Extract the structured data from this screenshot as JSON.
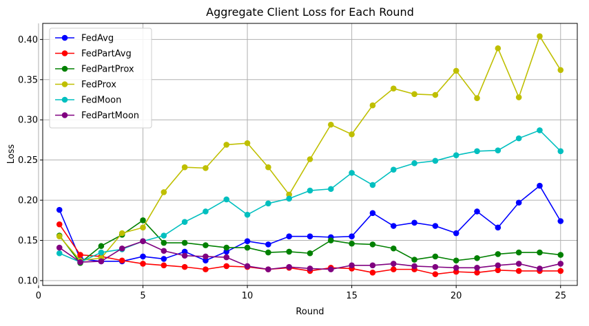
{
  "chart_data": {
    "type": "line",
    "title": "Aggregate Client Loss for Each Round",
    "xlabel": "Round",
    "ylabel": "Loss",
    "xlim": [
      0.2,
      25.8
    ],
    "ylim": [
      0.094,
      0.42
    ],
    "xticks": [
      0,
      5,
      10,
      15,
      20,
      25
    ],
    "yticks": [
      0.1,
      0.15,
      0.2,
      0.25,
      0.3,
      0.35,
      0.4
    ],
    "xtick_labels": [
      "0",
      "5",
      "10",
      "15",
      "20",
      "25"
    ],
    "ytick_labels": [
      "0.10",
      "0.15",
      "0.20",
      "0.25",
      "0.30",
      "0.35",
      "0.40"
    ],
    "grid": true,
    "legend_position": "top-left",
    "x": [
      1,
      2,
      3,
      4,
      5,
      6,
      7,
      8,
      9,
      10,
      11,
      12,
      13,
      14,
      15,
      16,
      17,
      18,
      19,
      20,
      21,
      22,
      23,
      24,
      25
    ],
    "series": [
      {
        "name": "FedAvg",
        "color": "#0000ff",
        "values": [
          0.188,
          0.127,
          0.124,
          0.124,
          0.13,
          0.127,
          0.136,
          0.125,
          0.136,
          0.149,
          0.145,
          0.155,
          0.155,
          0.154,
          0.155,
          0.184,
          0.168,
          0.172,
          0.168,
          0.159,
          0.186,
          0.166,
          0.197,
          0.218,
          0.174
        ]
      },
      {
        "name": "FedPartAvg",
        "color": "#ff0000",
        "values": [
          0.17,
          0.132,
          0.13,
          0.125,
          0.121,
          0.119,
          0.117,
          0.114,
          0.118,
          0.117,
          0.114,
          0.116,
          0.112,
          0.116,
          0.115,
          0.11,
          0.114,
          0.114,
          0.108,
          0.111,
          0.11,
          0.113,
          0.112,
          0.112,
          0.112
        ]
      },
      {
        "name": "FedPartProx",
        "color": "#008000",
        "values": [
          0.156,
          0.122,
          0.143,
          0.157,
          0.175,
          0.147,
          0.147,
          0.144,
          0.141,
          0.141,
          0.135,
          0.136,
          0.134,
          0.15,
          0.146,
          0.145,
          0.14,
          0.126,
          0.13,
          0.125,
          0.128,
          0.133,
          0.135,
          0.135,
          0.132
        ]
      },
      {
        "name": "FedProx",
        "color": "#bfbf00",
        "values": [
          0.155,
          0.125,
          0.128,
          0.159,
          0.166,
          0.21,
          0.241,
          0.24,
          0.269,
          0.271,
          0.241,
          0.207,
          0.251,
          0.294,
          0.282,
          0.318,
          0.339,
          0.332,
          0.331,
          0.361,
          0.327,
          0.389,
          0.328,
          0.404,
          0.362
        ]
      },
      {
        "name": "FedMoon",
        "color": "#00bfbf",
        "values": [
          0.134,
          0.123,
          0.135,
          0.139,
          0.149,
          0.156,
          0.173,
          0.186,
          0.201,
          0.182,
          0.196,
          0.202,
          0.212,
          0.214,
          0.234,
          0.219,
          0.238,
          0.246,
          0.249,
          0.256,
          0.261,
          0.262,
          0.277,
          0.287,
          0.261
        ]
      },
      {
        "name": "FedPartMoon",
        "color": "#800080",
        "values": [
          0.141,
          0.123,
          0.124,
          0.14,
          0.149,
          0.137,
          0.131,
          0.13,
          0.129,
          0.118,
          0.114,
          0.117,
          0.115,
          0.114,
          0.119,
          0.119,
          0.121,
          0.118,
          0.117,
          0.116,
          0.116,
          0.119,
          0.121,
          0.115,
          0.121
        ]
      }
    ]
  }
}
